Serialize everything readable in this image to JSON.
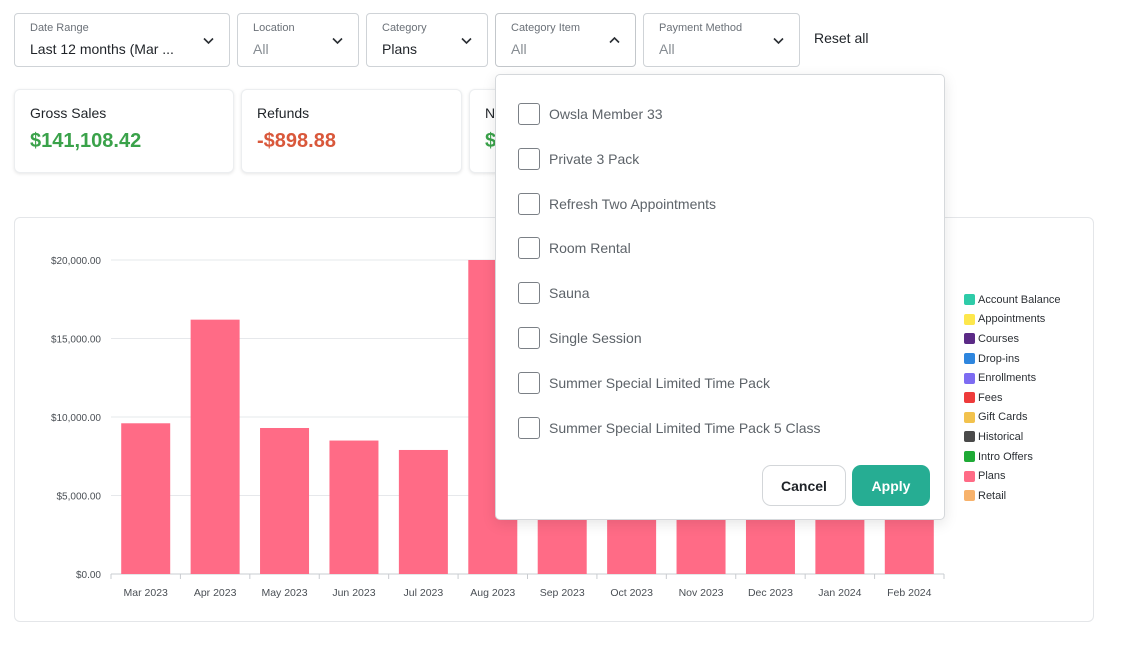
{
  "filters": {
    "date_range": {
      "label": "Date Range",
      "value": "Last 12 months (Mar ..."
    },
    "location": {
      "label": "Location",
      "value": "All"
    },
    "category": {
      "label": "Category",
      "value": "Plans"
    },
    "category_item": {
      "label": "Category Item",
      "value": "All"
    },
    "payment_method": {
      "label": "Payment Method",
      "value": "All"
    },
    "reset_label": "Reset all"
  },
  "summary": {
    "gross_sales": {
      "title": "Gross Sales",
      "value": "$141,108.42",
      "color": "#3aa24a"
    },
    "refunds": {
      "title": "Refunds",
      "value": "-$898.88",
      "color": "#d9583b"
    },
    "net_partial": {
      "title": "N",
      "value": "$",
      "color": "#3aa24a"
    }
  },
  "dropdown": {
    "options": [
      "Owsla Member 33",
      "Private 3 Pack",
      "Refresh Two Appointments",
      "Room Rental",
      "Sauna",
      "Single Session",
      "Summer Special Limited Time Pack",
      "Summer Special Limited Time Pack 5 Class"
    ],
    "cancel_label": "Cancel",
    "apply_label": "Apply"
  },
  "legend": [
    {
      "label": "Account Balance",
      "color": "#2ecba8"
    },
    {
      "label": "Appointments",
      "color": "#fde74c"
    },
    {
      "label": "Courses",
      "color": "#5b2a86"
    },
    {
      "label": "Drop-ins",
      "color": "#2e86de"
    },
    {
      "label": "Enrollments",
      "color": "#7d6cf2"
    },
    {
      "label": "Fees",
      "color": "#ee3b3b"
    },
    {
      "label": "Gift Cards",
      "color": "#f2c24d"
    },
    {
      "label": "Historical",
      "color": "#4a4a4a"
    },
    {
      "label": "Intro Offers",
      "color": "#1faa36"
    },
    {
      "label": "Plans",
      "color": "#ff6b86"
    },
    {
      "label": "Retail",
      "color": "#f7b26b"
    }
  ],
  "chart_data": {
    "type": "bar",
    "categories": [
      "Mar 2023",
      "Apr 2023",
      "May 2023",
      "Jun 2023",
      "Jul 2023",
      "Aug 2023",
      "Sep 2023",
      "Oct 2023",
      "Nov 2023",
      "Dec 2023",
      "Jan 2024",
      "Feb 2024"
    ],
    "series": [
      {
        "name": "Plans",
        "values": [
          9600,
          16200,
          9300,
          8500,
          7900,
          20000,
          6000,
          6000,
          6000,
          6000,
          6000,
          6000
        ],
        "color": "#ff6b86"
      }
    ],
    "yticks": [
      "$0.00",
      "$5,000.00",
      "$10,000.00",
      "$15,000.00",
      "$20,000.00"
    ],
    "ylim": [
      0,
      20000
    ],
    "grid": true,
    "legend_position": "right"
  }
}
